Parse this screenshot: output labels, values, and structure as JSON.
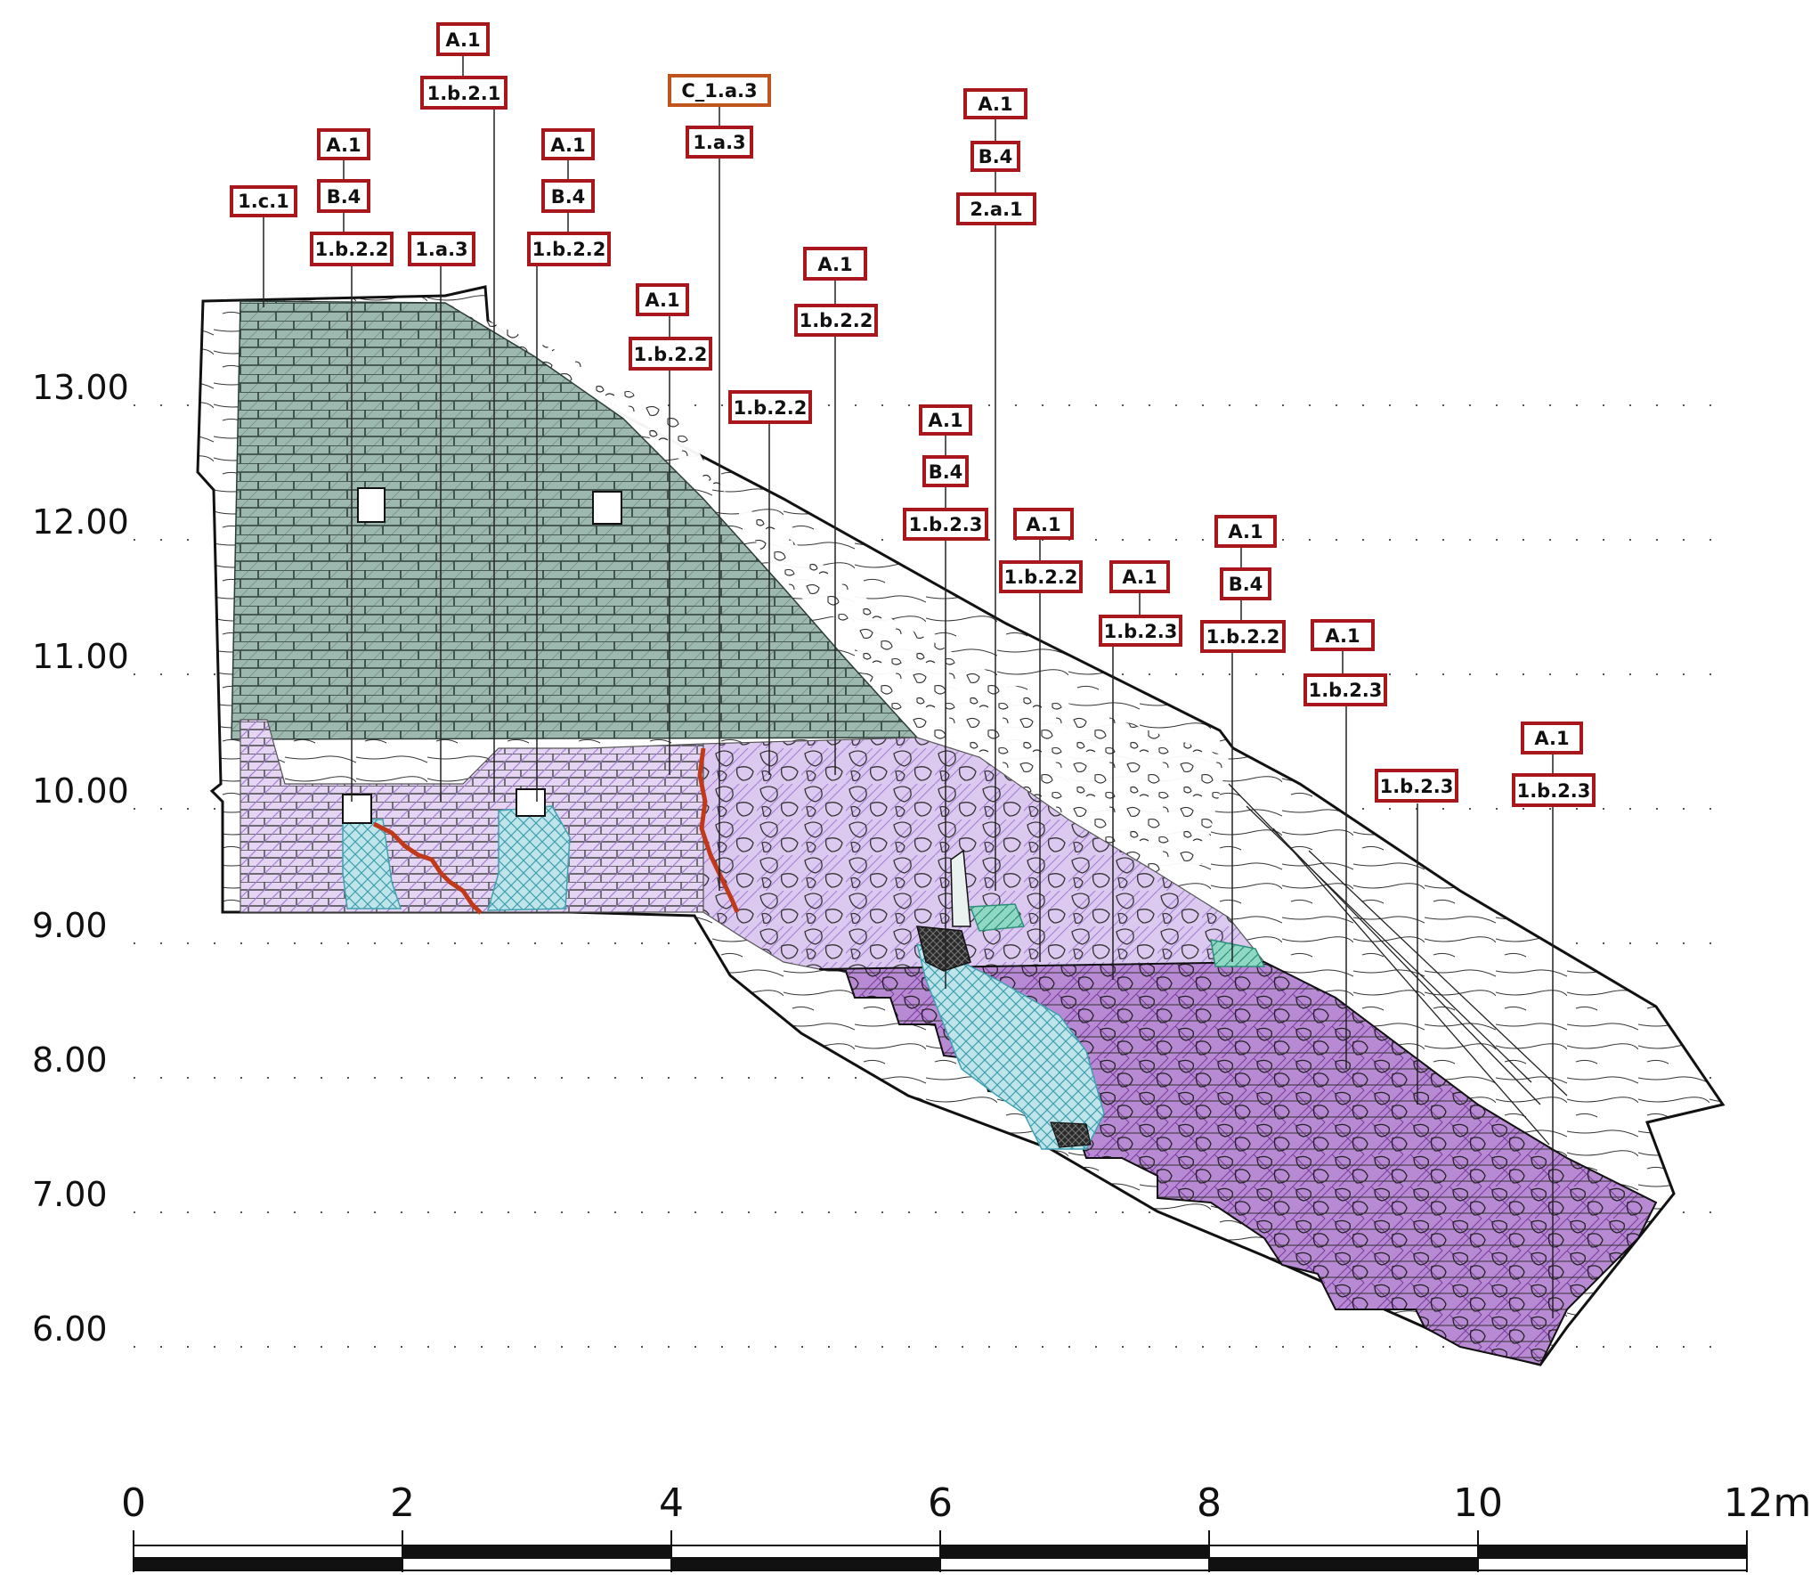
{
  "elevation_labels": [
    "13.00",
    "12.00",
    "11.00",
    "10.00",
    "9.00",
    "8.00",
    "7.00",
    "6.00"
  ],
  "scale_bar": {
    "labels": [
      "0",
      "2",
      "4",
      "6",
      "8",
      "10",
      "12m"
    ]
  },
  "tags": [
    {
      "id": "t1c1",
      "text": "1.c.1"
    },
    {
      "id": "tA1a",
      "text": "A.1"
    },
    {
      "id": "tB4a",
      "text": "B.4"
    },
    {
      "id": "t1b22a",
      "text": "1.b.2.2"
    },
    {
      "id": "t1a3a",
      "text": "1.a.3"
    },
    {
      "id": "tA1b",
      "text": "A.1"
    },
    {
      "id": "t1b21",
      "text": "1.b.2.1"
    },
    {
      "id": "tA1c",
      "text": "A.1"
    },
    {
      "id": "tB4c",
      "text": "B.4"
    },
    {
      "id": "t1b22c",
      "text": "1.b.2.2"
    },
    {
      "id": "tA1d",
      "text": "A.1"
    },
    {
      "id": "t1b22d",
      "text": "1.b.2.2"
    },
    {
      "id": "tC1a3",
      "text": "C_1.a.3"
    },
    {
      "id": "t1a3b",
      "text": "1.a.3"
    },
    {
      "id": "t1b22e",
      "text": "1.b.2.2"
    },
    {
      "id": "tA1f",
      "text": "A.1"
    },
    {
      "id": "t1b22f",
      "text": "1.b.2.2"
    },
    {
      "id": "tA1g",
      "text": "A.1"
    },
    {
      "id": "tB4g",
      "text": "B.4"
    },
    {
      "id": "t1b23g",
      "text": "1.b.2.3"
    },
    {
      "id": "tA1h",
      "text": "A.1"
    },
    {
      "id": "tB4h",
      "text": "B.4"
    },
    {
      "id": "t2a1",
      "text": "2.a.1"
    },
    {
      "id": "tA1i",
      "text": "A.1"
    },
    {
      "id": "t1b22i",
      "text": "1.b.2.2"
    },
    {
      "id": "tA1j",
      "text": "A.1"
    },
    {
      "id": "t1b23j",
      "text": "1.b.2.3"
    },
    {
      "id": "tA1k",
      "text": "A.1"
    },
    {
      "id": "tB4k",
      "text": "B.4"
    },
    {
      "id": "t1b22k",
      "text": "1.b.2.2"
    },
    {
      "id": "tA1l",
      "text": "A.1"
    },
    {
      "id": "t1b23l",
      "text": "1.b.2.3"
    },
    {
      "id": "t1b23m",
      "text": "1.b.2.3"
    },
    {
      "id": "tA1n",
      "text": "A.1"
    },
    {
      "id": "t1b23n",
      "text": "1.b.2.3"
    }
  ],
  "colors": {
    "tag_border": "#a8171c",
    "tag_border_alt": "#c0541d",
    "phase_green": "#9db8ae",
    "phase_lilac": "#cbb3e6",
    "phase_purple": "#a45fc4",
    "phase_cyan": "#7cc4cf",
    "phase_teal": "#5fc2a9",
    "crack_red": "#c0391b"
  }
}
